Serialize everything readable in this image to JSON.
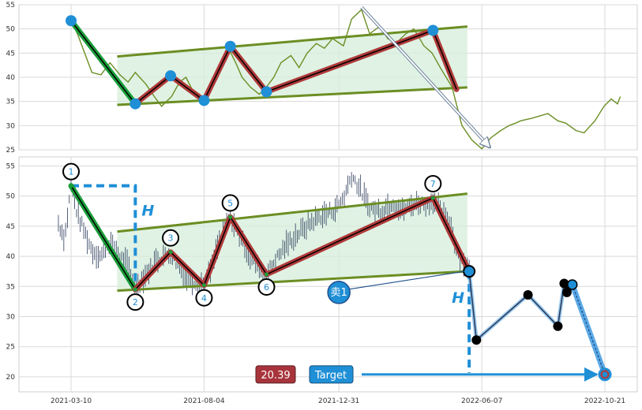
{
  "chart_data": [
    {
      "type": "line",
      "panel": "top",
      "title": "",
      "xlabel": "",
      "ylabel": "",
      "ylim": [
        25,
        55
      ],
      "yticks": [
        25,
        30,
        35,
        40,
        45,
        50,
        55
      ],
      "grid": true,
      "colors": {
        "price": "#6b8e23",
        "channel_fill": "#d6eedb",
        "channel_line": "#6b8e23",
        "pattern": "#b03a3a",
        "first_leg": "#1a9e3a",
        "marker": "#1f8fd6"
      },
      "series": [
        {
          "x": [
            "2021-03-10",
            "2021-03-17",
            "2021-03-25",
            "2021-04-02",
            "2021-04-12",
            "2021-04-22",
            "2021-05-03",
            "2021-05-12",
            "2021-05-20",
            "2021-06-01",
            "2021-06-10",
            "2021-06-18",
            "2021-06-29",
            "2021-07-08",
            "2021-07-15",
            "2021-07-23",
            "2021-08-02",
            "2021-08-10",
            "2021-08-20",
            "2021-08-31",
            "2021-09-08",
            "2021-09-15",
            "2021-09-24",
            "2021-10-04",
            "2021-10-12",
            "2021-10-20",
            "2021-10-28",
            "2021-11-08",
            "2021-11-17",
            "2021-11-26",
            "2021-12-06",
            "2021-12-15",
            "2021-12-24",
            "2022-01-05",
            "2022-01-14",
            "2022-01-25",
            "2022-02-03",
            "2022-02-14",
            "2022-02-23",
            "2022-03-04",
            "2022-03-15",
            "2022-03-24",
            "2022-04-04",
            "2022-04-13",
            "2022-04-22",
            "2022-05-05",
            "2022-05-16",
            "2022-05-27",
            "2022-06-07",
            "2022-06-17",
            "2022-06-28",
            "2022-07-07",
            "2022-07-14",
            "2022-07-20",
            "2022-08-01",
            "2022-08-10",
            "2022-08-19",
            "2022-08-30",
            "2022-09-08",
            "2022-09-19",
            "2022-09-28",
            "2022-10-10",
            "2022-10-20",
            "2022-10-28",
            "2022-11-04",
            "2022-11-07"
          ],
          "y": [
            51.7,
            49,
            45,
            41,
            40.5,
            43,
            40.5,
            39,
            41,
            38.5,
            36,
            34,
            36,
            39,
            40,
            37,
            35.5,
            38,
            42,
            46,
            43,
            40,
            38,
            36.5,
            38,
            40,
            43,
            44.5,
            42,
            45,
            47,
            46,
            48,
            46.5,
            52,
            54,
            49,
            50.5,
            48,
            47,
            49,
            50,
            46.5,
            45,
            42,
            38,
            30,
            27,
            25.2,
            27.5,
            29,
            30,
            30.5,
            31,
            31.5,
            32,
            32.5,
            31,
            30.5,
            29,
            28.5,
            31,
            34,
            35.5,
            34.5,
            36
          ]
        }
      ],
      "pattern_points": [
        {
          "x": "2021-03-10",
          "y": 51.7
        },
        {
          "x": "2021-05-20",
          "y": 34.5
        },
        {
          "x": "2021-06-28",
          "y": 40.3
        },
        {
          "x": "2021-08-04",
          "y": 35.2
        },
        {
          "x": "2021-09-02",
          "y": 46.4
        },
        {
          "x": "2021-10-12",
          "y": 37
        },
        {
          "x": "2022-04-14",
          "y": 49.7
        },
        {
          "x": "2022-05-10",
          "y": 37.5
        }
      ],
      "channel": {
        "upper": [
          {
            "x": "2021-04-30",
            "y": 44.3
          },
          {
            "x": "2022-05-22",
            "y": 50.5
          }
        ],
        "lower": [
          {
            "x": "2021-04-30",
            "y": 34.3
          },
          {
            "x": "2022-05-22",
            "y": 37.9
          }
        ]
      },
      "projection_arrow": [
        {
          "x": "2022-01-25",
          "y": 54.5
        },
        {
          "x": "2022-06-16",
          "y": 25.5
        }
      ]
    },
    {
      "type": "scatter",
      "panel": "bottom",
      "title": "",
      "xlabel": "",
      "ylabel": "",
      "ylim": [
        17.5,
        56.5
      ],
      "yticks": [
        20,
        25,
        30,
        35,
        40,
        45,
        50,
        55
      ],
      "x_tick_labels": [
        "2021-03-10",
        "2021-08-04",
        "2021-12-31",
        "2022-06-07",
        "2022-10-21"
      ],
      "grid": true,
      "colors": {
        "bars": "#2a3a5a",
        "channel_fill": "#d6eedb",
        "channel_line": "#6b8e23",
        "pattern": "#b03a3a",
        "first_leg": "#1a9e3a",
        "height_marker": "#1f8fd6",
        "sell_badge": "#1f8fd6",
        "price_badge": "#a8343b",
        "target_badge": "#1f8fd6",
        "target_arrow": "#1f8fd6",
        "path": "#2a3a5a"
      },
      "bar_range": {
        "start": "2021-02-24",
        "end": "2022-05-25"
      },
      "close_series": [
        {
          "x": [
            "2021-02-24",
            "2021-03-03",
            "2021-03-10",
            "2021-03-17",
            "2021-03-25",
            "2021-04-02",
            "2021-04-12",
            "2021-04-22",
            "2021-05-03",
            "2021-05-12",
            "2021-05-20",
            "2021-06-01",
            "2021-06-10",
            "2021-06-18",
            "2021-06-28",
            "2021-07-08",
            "2021-07-15",
            "2021-07-23",
            "2021-08-04",
            "2021-08-12",
            "2021-08-20",
            "2021-09-02",
            "2021-09-10",
            "2021-09-20",
            "2021-09-28",
            "2021-10-06",
            "2021-10-12",
            "2021-10-20",
            "2021-11-01",
            "2021-11-10",
            "2021-11-18",
            "2021-11-29",
            "2021-12-08",
            "2021-12-17",
            "2021-12-28",
            "2022-01-06",
            "2022-01-14",
            "2022-01-24",
            "2022-02-01",
            "2022-02-10",
            "2022-02-18",
            "2022-03-01",
            "2022-03-10",
            "2022-03-21",
            "2022-03-30",
            "2022-04-08",
            "2022-04-14",
            "2022-04-25",
            "2022-05-04",
            "2022-05-10",
            "2022-05-18",
            "2022-05-25"
          ],
          "y": [
            45.5,
            43,
            51.7,
            47,
            44,
            41,
            40,
            42.5,
            40,
            38.5,
            35,
            37,
            39,
            40,
            40.5,
            38,
            36.5,
            36,
            35.2,
            38,
            42,
            46.5,
            44,
            41,
            39,
            37.5,
            37,
            39,
            41.5,
            43,
            44,
            45.5,
            46.5,
            47,
            48,
            50,
            53.5,
            51,
            48.5,
            47.5,
            48,
            49,
            47.5,
            48.5,
            49,
            48.5,
            49.5,
            47,
            45,
            41,
            39,
            38
          ]
        }
      ],
      "markers": [
        {
          "label": "1",
          "x": "2021-03-10",
          "y": 51.7
        },
        {
          "label": "2",
          "x": "2021-05-20",
          "y": 34.5
        },
        {
          "label": "3",
          "x": "2021-06-28",
          "y": 40.7
        },
        {
          "label": "4",
          "x": "2021-08-04",
          "y": 35.2
        },
        {
          "label": "5",
          "x": "2021-09-02",
          "y": 46.5
        },
        {
          "label": "6",
          "x": "2021-10-12",
          "y": 37
        },
        {
          "label": "7",
          "x": "2022-04-14",
          "y": 49.7
        }
      ],
      "channel": {
        "upper": [
          {
            "x": "2021-04-30",
            "y": 44.1
          },
          {
            "x": "2022-05-22",
            "y": 50.4
          }
        ],
        "lower": [
          {
            "x": "2021-04-30",
            "y": 34.3
          },
          {
            "x": "2022-05-22",
            "y": 37.5
          }
        ]
      },
      "height_label": "H",
      "breakout_point": {
        "x": "2022-05-24",
        "y": 37.5
      },
      "sell_label": "卖1",
      "post_breakout_path": [
        {
          "x": "2022-05-24",
          "y": 37.5
        },
        {
          "x": "2022-06-01",
          "y": 26.1
        },
        {
          "x": "2022-07-28",
          "y": 33.6
        },
        {
          "x": "2022-08-30",
          "y": 28.4
        },
        {
          "x": "2022-09-06",
          "y": 35.5
        },
        {
          "x": "2022-09-09",
          "y": 34
        },
        {
          "x": "2022-09-12",
          "y": 35
        },
        {
          "x": "2022-09-15",
          "y": 35.3
        }
      ],
      "target_line": [
        {
          "x": "2022-09-15",
          "y": 35.3
        },
        {
          "x": "2022-10-21",
          "y": 20.39
        }
      ],
      "target_price_label": "20.39",
      "target_label": "Target",
      "target_point": {
        "x": "2022-10-21",
        "y": 20.39
      }
    }
  ]
}
